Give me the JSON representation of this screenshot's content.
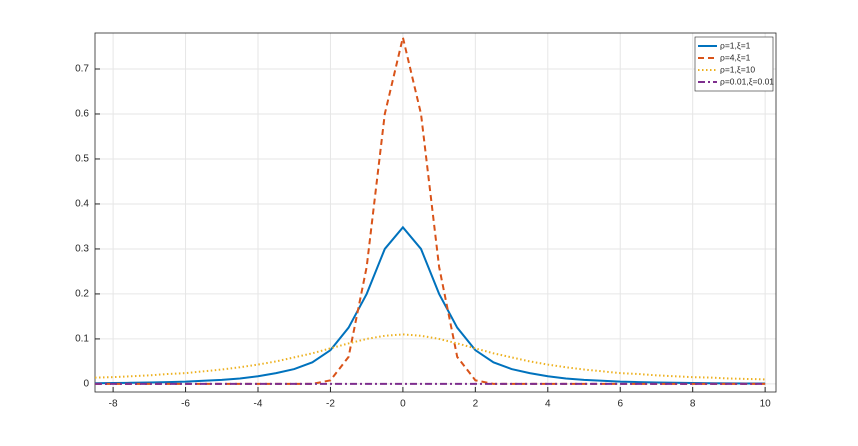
{
  "chart_data": {
    "type": "line",
    "x": [
      -8.5,
      -8,
      -7.5,
      -7,
      -6.5,
      -6,
      -5.5,
      -5,
      -4.5,
      -4,
      -3.5,
      -3,
      -2.5,
      -2,
      -1.5,
      -1,
      -0.5,
      0,
      0.5,
      1,
      1.5,
      2,
      2.5,
      3,
      3.5,
      4,
      4.5,
      5,
      5.5,
      6,
      6.5,
      7,
      7.5,
      8,
      8.5,
      9,
      9.5,
      10
    ],
    "series": [
      {
        "name": "ρ=1,ξ=1",
        "color": "#0072bd",
        "dash": "solid",
        "values": [
          0.0015,
          0.002,
          0.0025,
          0.003,
          0.004,
          0.005,
          0.007,
          0.009,
          0.012,
          0.017,
          0.024,
          0.033,
          0.048,
          0.075,
          0.125,
          0.2,
          0.3,
          0.348,
          0.3,
          0.2,
          0.125,
          0.075,
          0.048,
          0.033,
          0.024,
          0.017,
          0.012,
          0.009,
          0.007,
          0.005,
          0.004,
          0.003,
          0.0025,
          0.002,
          0.0015,
          0.0012,
          0.001,
          0.001
        ]
      },
      {
        "name": "ρ=4,ξ=1",
        "color": "#d95319",
        "dash": "dashed",
        "values": [
          0,
          0,
          0,
          0,
          0,
          0,
          0,
          0,
          0,
          0,
          0,
          0,
          0,
          0.008,
          0.06,
          0.26,
          0.6,
          0.77,
          0.6,
          0.26,
          0.06,
          0.008,
          0,
          0,
          0,
          0,
          0,
          0,
          0,
          0,
          0,
          0,
          0,
          0,
          0,
          0,
          0,
          0
        ]
      },
      {
        "name": "ρ=1,ξ=10",
        "color": "#edb120",
        "dash": "dotted",
        "values": [
          0.014,
          0.015,
          0.017,
          0.019,
          0.022,
          0.024,
          0.028,
          0.032,
          0.037,
          0.043,
          0.05,
          0.059,
          0.068,
          0.079,
          0.09,
          0.1,
          0.107,
          0.11,
          0.107,
          0.1,
          0.09,
          0.079,
          0.068,
          0.059,
          0.05,
          0.043,
          0.037,
          0.032,
          0.028,
          0.024,
          0.022,
          0.019,
          0.017,
          0.015,
          0.014,
          0.012,
          0.011,
          0.01
        ]
      },
      {
        "name": "ρ=0.01,ξ=0.01",
        "color": "#7e2f8e",
        "dash": "dashdot",
        "values": [
          0,
          0,
          0,
          0,
          0,
          0,
          0,
          0,
          0,
          0,
          0,
          0,
          0,
          0,
          0,
          0,
          0,
          0,
          0,
          0,
          0,
          0,
          0,
          0,
          0,
          0,
          0,
          0,
          0,
          0,
          0,
          0,
          0,
          0,
          0,
          0,
          0,
          0
        ]
      }
    ],
    "xlim": [
      -8.5,
      10.3
    ],
    "ylim": [
      -0.018,
      0.78
    ],
    "xticks": [
      -8,
      -6,
      -4,
      -2,
      0,
      2,
      4,
      6,
      8,
      10
    ],
    "yticks": [
      0,
      0.1,
      0.2,
      0.3,
      0.4,
      0.5,
      0.6,
      0.7
    ],
    "grid": true,
    "legend": "top-right"
  }
}
